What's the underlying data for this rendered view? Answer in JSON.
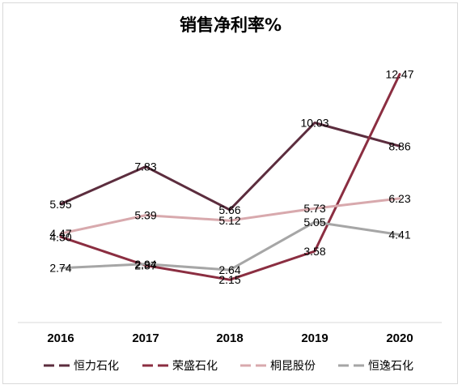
{
  "chart_data": {
    "type": "line",
    "title": "销售净利率%",
    "categories": [
      "2016",
      "2017",
      "2018",
      "2019",
      "2020"
    ],
    "ylim": [
      0,
      14
    ],
    "grid": false,
    "legend_position": "bottom",
    "series": [
      {
        "name": "恒力石化",
        "color": "#5c2d3e",
        "values": [
          5.95,
          7.83,
          5.66,
          10.03,
          8.86
        ],
        "labels": [
          "5.95",
          "7.83",
          "5.66",
          "10.03",
          "8.86"
        ]
      },
      {
        "name": "荣盛石化",
        "color": "#8b2e41",
        "values": [
          4.3,
          2.87,
          2.15,
          3.58,
          12.47
        ],
        "labels": [
          "4.30",
          "2.87",
          "2.15",
          "3.58",
          "12.47"
        ]
      },
      {
        "name": "桐昆股份",
        "color": "#d8a9ad",
        "values": [
          4.47,
          5.39,
          5.12,
          5.73,
          6.23
        ],
        "labels": [
          "4.47",
          "5.39",
          "5.12",
          "5.73",
          "6.23"
        ]
      },
      {
        "name": "恒逸石化",
        "color": "#a6a6a6",
        "values": [
          2.74,
          2.94,
          2.64,
          5.05,
          4.41
        ],
        "labels": [
          "2.74",
          "2.94",
          "2.64",
          "5.05",
          "4.41"
        ]
      }
    ]
  }
}
